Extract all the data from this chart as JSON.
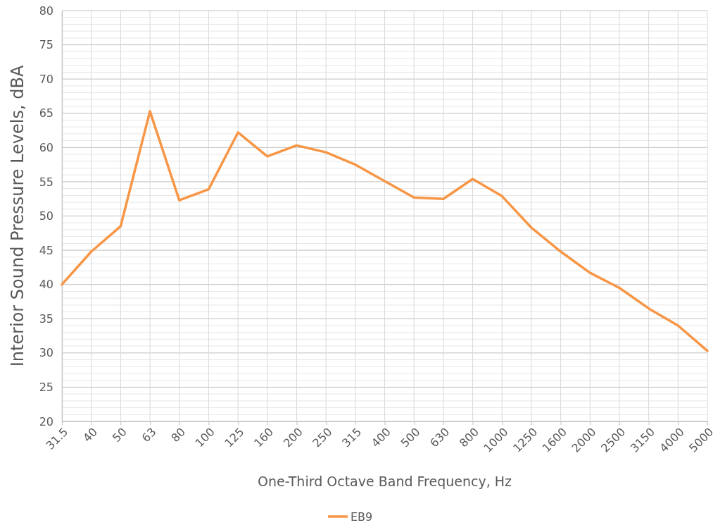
{
  "chart_data": {
    "type": "line",
    "xlabel": "One-Third Octave Band Frequency, Hz",
    "ylabel": "Interior Sound Pressure Levels, dBA",
    "categories": [
      "31.5",
      "40",
      "50",
      "63",
      "80",
      "100",
      "125",
      "160",
      "200",
      "250",
      "315",
      "400",
      "500",
      "630",
      "800",
      "1000",
      "1250",
      "1600",
      "2000",
      "2500",
      "3150",
      "4000",
      "5000"
    ],
    "series": [
      {
        "name": "EB9",
        "color": "#f79646",
        "values": [
          40.0,
          44.8,
          48.5,
          65.3,
          52.3,
          53.9,
          62.2,
          58.7,
          60.3,
          59.3,
          57.5,
          55.1,
          52.7,
          52.5,
          55.4,
          52.9,
          48.3,
          44.8,
          41.7,
          39.5,
          36.5,
          34.0,
          30.3
        ]
      }
    ],
    "ylim": [
      20,
      80
    ],
    "yticks": [
      20,
      {
        "value": 21,
        "label": null
      },
      {
        "value": 22,
        "label": null
      },
      {
        "value": 23,
        "label": null
      },
      {
        "value": 24,
        "label": null
      },
      25,
      {
        "value": 26,
        "label": null
      },
      {
        "value": 27,
        "label": null
      },
      {
        "value": 28,
        "label": null
      },
      {
        "value": 29,
        "label": null
      },
      30,
      {
        "value": 31,
        "label": null
      },
      {
        "value": 32,
        "label": null
      },
      {
        "value": 33,
        "label": null
      },
      {
        "value": 34,
        "label": null
      },
      35,
      {
        "value": 36,
        "label": null
      },
      {
        "value": 37,
        "label": null
      },
      {
        "value": 38,
        "label": null
      },
      {
        "value": 39,
        "label": null
      },
      40,
      {
        "value": 41,
        "label": null
      },
      {
        "value": 42,
        "label": null
      },
      {
        "value": 43,
        "label": null
      },
      {
        "value": 44,
        "label": null
      },
      45,
      {
        "value": 46,
        "label": null
      },
      {
        "value": 47,
        "label": null
      },
      {
        "value": 48,
        "label": null
      },
      {
        "value": 49,
        "label": null
      },
      50,
      {
        "value": 51,
        "label": null
      },
      {
        "value": 52,
        "label": null
      },
      {
        "value": 53,
        "label": null
      },
      {
        "value": 54,
        "label": null
      },
      55,
      {
        "value": 56,
        "label": null
      },
      {
        "value": 57,
        "label": null
      },
      {
        "value": 58,
        "label": null
      },
      {
        "value": 59,
        "label": null
      },
      60,
      {
        "value": 61,
        "label": null
      },
      {
        "value": 62,
        "label": null
      },
      {
        "value": 63,
        "label": null
      },
      {
        "value": 64,
        "label": null
      },
      65,
      {
        "value": 66,
        "label": null
      },
      {
        "value": 67,
        "label": null
      },
      {
        "value": 68,
        "label": null
      },
      {
        "value": 69,
        "label": null
      },
      70,
      {
        "value": 71,
        "label": null
      },
      {
        "value": 72,
        "label": null
      },
      {
        "value": 73,
        "label": null
      },
      {
        "value": 74,
        "label": null
      },
      75,
      {
        "value": 76,
        "label": null
      },
      {
        "value": 77,
        "label": null
      },
      {
        "value": 78,
        "label": null
      },
      {
        "value": 79,
        "label": null
      },
      80
    ],
    "grid": true,
    "legend": "bottom",
    "marker": "none",
    "line_style": "solid"
  }
}
